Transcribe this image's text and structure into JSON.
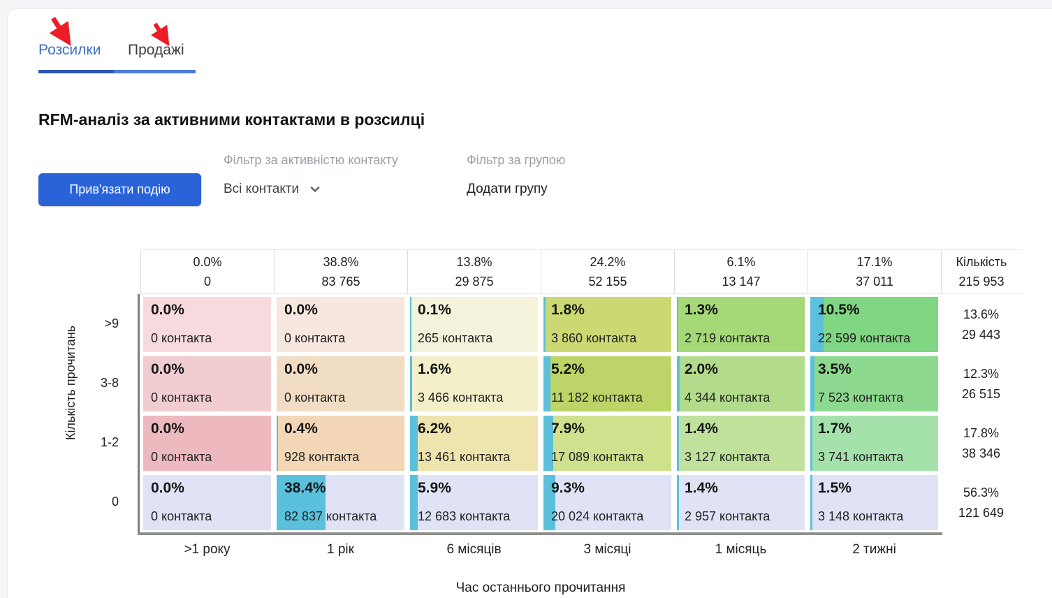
{
  "window": {
    "outer_bg": "#f5f5f7",
    "card_bg": "#ffffff"
  },
  "tabs": {
    "items": [
      {
        "label": "Розсилки",
        "color": "#3d6fc2",
        "underline": "#2d55b2",
        "active": true
      },
      {
        "label": "Продажі",
        "color": "#3c4043",
        "underline": "#4b7de0",
        "active": false
      }
    ]
  },
  "annotations": {
    "arrow_color": "#ee1c24",
    "note": "two red arrows pointing at the tabs"
  },
  "title": "RFM-аналіз за активними контактами в розсилці",
  "toolbar": {
    "bind_event_button": "Прив'язати подію",
    "button_color": "#2a63d8",
    "activity_filter_label": "Фільтр за активністю контакту",
    "activity_filter_value": "Всі контакти",
    "group_filter_label": "Фільтр за групою",
    "group_filter_action": "Додати групу"
  },
  "matrix": {
    "y_axis_title": "Кількість прочитань",
    "x_axis_title": "Час останнього прочитання",
    "bar_color": "#5bc0db",
    "columns": [
      {
        "pct": "0.0%",
        "count": "0",
        "footer": ">1 року"
      },
      {
        "pct": "38.8%",
        "count": "83 765",
        "footer": "1 рік"
      },
      {
        "pct": "13.8%",
        "count": "29 875",
        "footer": "6 місяців"
      },
      {
        "pct": "24.2%",
        "count": "52 155",
        "footer": "3 місяці"
      },
      {
        "pct": "6.1%",
        "count": "13 147",
        "footer": "1 місяць"
      },
      {
        "pct": "17.1%",
        "count": "37 011",
        "footer": "2 тижні"
      }
    ],
    "total_header": {
      "label": "Кількість",
      "count": "215 953"
    },
    "rows": [
      {
        "label": ">9",
        "total_pct": "13.6%",
        "total_count": "29 443",
        "cells": [
          {
            "pct": "0.0%",
            "value": 0.0,
            "count": "0 контакта",
            "bg": "#f6dade"
          },
          {
            "pct": "0.0%",
            "value": 0.0,
            "count": "0 контакта",
            "bg": "#f8e7df"
          },
          {
            "pct": "0.1%",
            "value": 0.1,
            "count": "265 контакта",
            "bg": "#f4f2da"
          },
          {
            "pct": "1.8%",
            "value": 1.8,
            "count": "3 860 контакта",
            "bg": "#ccd973"
          },
          {
            "pct": "1.3%",
            "value": 1.3,
            "count": "2 719 контакта",
            "bg": "#a5d977"
          },
          {
            "pct": "10.5%",
            "value": 10.5,
            "count": "22 599 контакта",
            "bg": "#80d682"
          }
        ]
      },
      {
        "label": "3-8",
        "total_pct": "12.3%",
        "total_count": "26 515",
        "cells": [
          {
            "pct": "0.0%",
            "value": 0.0,
            "count": "0 контакта",
            "bg": "#f1ccd1"
          },
          {
            "pct": "0.0%",
            "value": 0.0,
            "count": "0 контакта",
            "bg": "#f1dcc4"
          },
          {
            "pct": "1.6%",
            "value": 1.6,
            "count": "3 466 контакта",
            "bg": "#f3efc9"
          },
          {
            "pct": "5.2%",
            "value": 5.2,
            "count": "11 182 контакта",
            "bg": "#bdd568"
          },
          {
            "pct": "2.0%",
            "value": 2.0,
            "count": "4 344 контакта",
            "bg": "#b2dc8c"
          },
          {
            "pct": "3.5%",
            "value": 3.5,
            "count": "7 523 контакта",
            "bg": "#8cd98f"
          }
        ]
      },
      {
        "label": "1-2",
        "total_pct": "17.8%",
        "total_count": "38 346",
        "cells": [
          {
            "pct": "0.0%",
            "value": 0.0,
            "count": "0 контакта",
            "bg": "#edb9bf"
          },
          {
            "pct": "0.4%",
            "value": 0.4,
            "count": "928 контакта",
            "bg": "#f2d6b5"
          },
          {
            "pct": "6.2%",
            "value": 6.2,
            "count": "13 461 контакта",
            "bg": "#eee5ae"
          },
          {
            "pct": "7.9%",
            "value": 7.9,
            "count": "17 089 контакта",
            "bg": "#cfe18d"
          },
          {
            "pct": "1.4%",
            "value": 1.4,
            "count": "3 127 контакта",
            "bg": "#bfe19b"
          },
          {
            "pct": "1.7%",
            "value": 1.7,
            "count": "3 741 контакта",
            "bg": "#a5e2ab"
          }
        ]
      },
      {
        "label": "0",
        "total_pct": "56.3%",
        "total_count": "121 649",
        "cells": [
          {
            "pct": "0.0%",
            "value": 0.0,
            "count": "0 контакта",
            "bg": "#dfe3f5"
          },
          {
            "pct": "38.4%",
            "value": 38.4,
            "count": "82 837 контакта",
            "bg": "#dfe3f5"
          },
          {
            "pct": "5.9%",
            "value": 5.9,
            "count": "12 683 контакта",
            "bg": "#dfe3f5"
          },
          {
            "pct": "9.3%",
            "value": 9.3,
            "count": "20 024 контакта",
            "bg": "#dfe3f5"
          },
          {
            "pct": "1.4%",
            "value": 1.4,
            "count": "2 957 контакта",
            "bg": "#dfe3f5"
          },
          {
            "pct": "1.5%",
            "value": 1.5,
            "count": "3 148 контакта",
            "bg": "#dfe3f5"
          }
        ]
      }
    ]
  }
}
